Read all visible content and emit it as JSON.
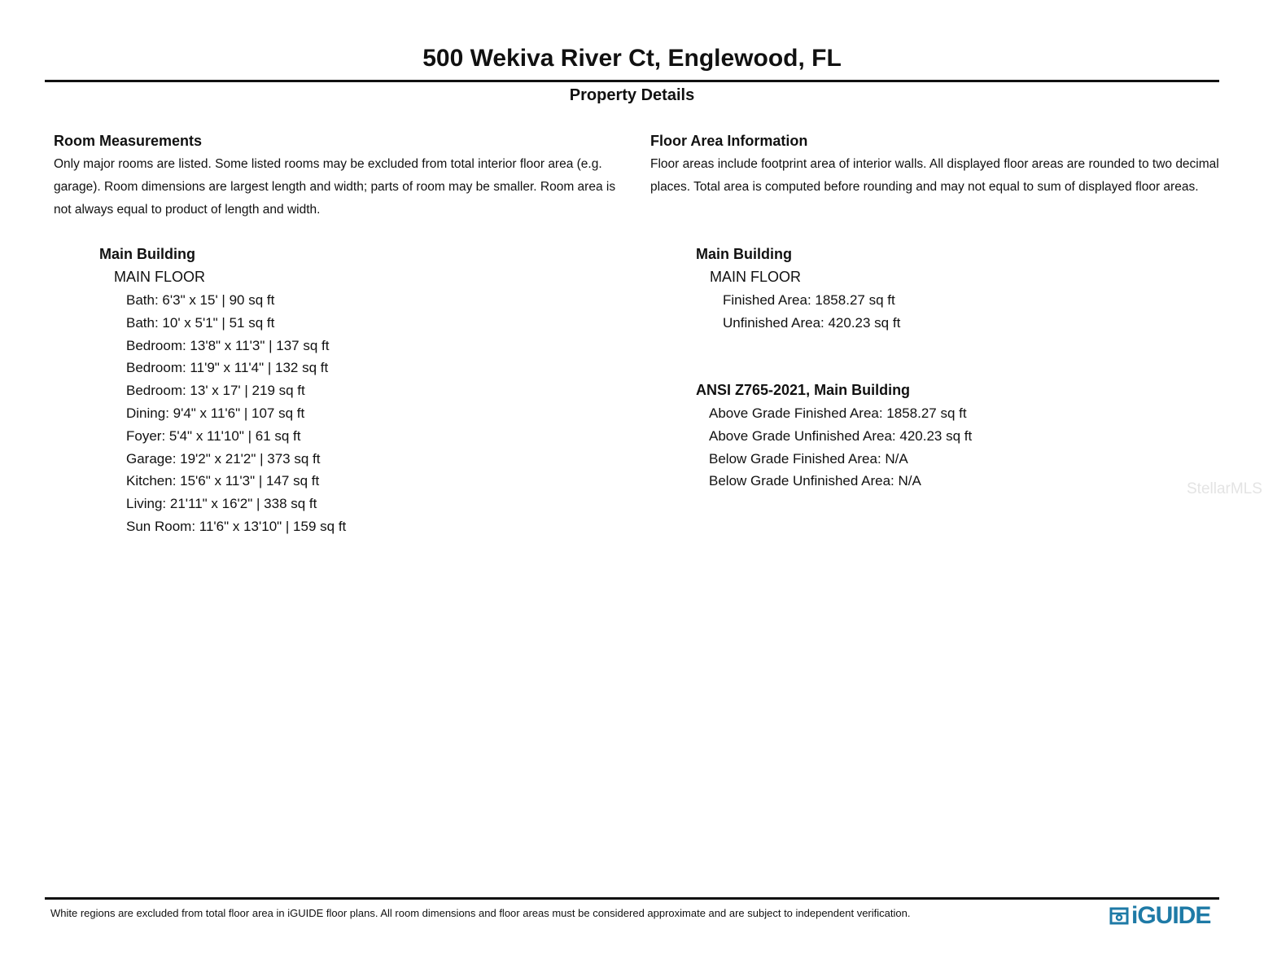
{
  "header": {
    "title": "500 Wekiva River Ct, Englewood, FL",
    "subtitle": "Property Details"
  },
  "rooms": {
    "heading": "Room Measurements",
    "description": "Only major rooms are listed. Some listed rooms may be excluded from total interior floor area (e.g. garage). Room dimensions are largest length and width; parts of room may be smaller. Room area is not always equal to product of length and width.",
    "building": "Main Building",
    "floor": "MAIN FLOOR",
    "items": [
      "Bath: 6'3\" x 15' | 90 sq ft",
      "Bath: 10' x 5'1\" | 51 sq ft",
      "Bedroom: 13'8\" x 11'3\" | 137 sq ft",
      "Bedroom: 11'9\" x 11'4\" | 132 sq ft",
      "Bedroom: 13' x 17' | 219 sq ft",
      "Dining: 9'4\" x 11'6\" | 107 sq ft",
      "Foyer: 5'4\" x 11'10\" | 61 sq ft",
      "Garage: 19'2\" x 21'2\" | 373 sq ft",
      "Kitchen: 15'6\" x 11'3\" | 147 sq ft",
      "Living: 21'11\" x 16'2\" | 338 sq ft",
      "Sun Room: 11'6\" x 13'10\" | 159 sq ft"
    ]
  },
  "floor_area": {
    "heading": "Floor Area Information",
    "description": "Floor areas include footprint area of interior walls. All displayed floor areas are rounded to two decimal places. Total area is computed before rounding and may not equal to sum of displayed floor areas.",
    "building": "Main Building",
    "floor": "MAIN FLOOR",
    "items": [
      "Finished Area: 1858.27 sq ft",
      "Unfinished Area: 420.23 sq ft"
    ],
    "ansi_heading": "ANSI Z765-2021, Main Building",
    "ansi_items": [
      "Above Grade Finished Area: 1858.27 sq ft",
      "Above Grade Unfinished Area: 420.23 sq ft",
      "Below Grade Finished Area: N/A",
      "Below Grade Unfinished Area: N/A"
    ]
  },
  "footer": {
    "note": "White regions are excluded from total floor area in iGUIDE floor plans. All room dimensions and floor areas must be considered approximate and are subject to independent verification.",
    "logo": "iGUIDE",
    "logo_color": "#1e7aa6"
  },
  "watermark": "StellarMLS"
}
